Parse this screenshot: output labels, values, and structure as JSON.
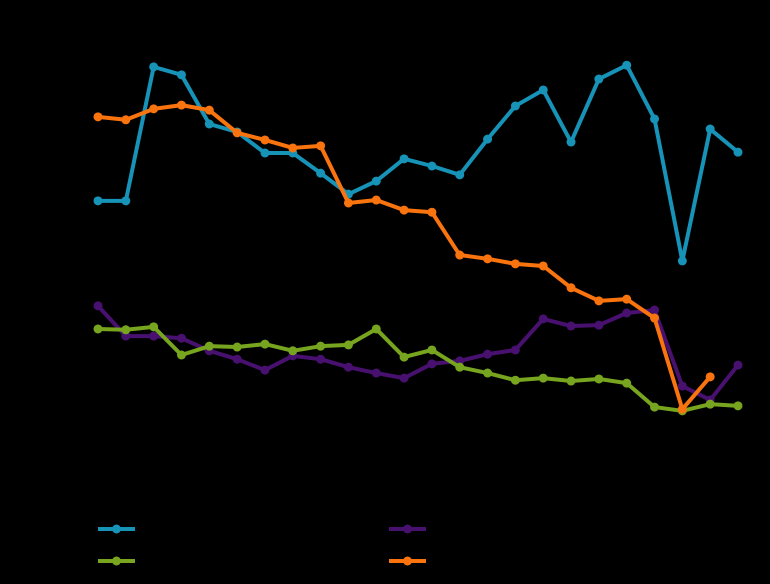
{
  "chart_data": {
    "type": "line",
    "categories": [
      null,
      null,
      null,
      null,
      null,
      null,
      null,
      null,
      null,
      null,
      null,
      null,
      null,
      null,
      null,
      null,
      null,
      null,
      null,
      null,
      null,
      null,
      null,
      null
    ],
    "ylim": [
      0,
      100
    ],
    "background": "#000000",
    "series": [
      {
        "color": "#1793b8",
        "values": [
          61.7,
          61.7,
          93.6,
          91.7,
          80.0,
          78.1,
          73.1,
          73.1,
          68.3,
          63.3,
          66.4,
          71.7,
          70.0,
          67.9,
          76.4,
          84.3,
          88.1,
          75.7,
          90.7,
          94.0,
          81.2,
          47.4,
          78.8,
          73.3
        ]
      },
      {
        "color": "#48106f",
        "values": [
          36.7,
          29.5,
          29.5,
          29.0,
          26.0,
          24.0,
          21.4,
          24.8,
          24.0,
          22.1,
          20.7,
          19.5,
          22.9,
          23.6,
          25.2,
          26.2,
          33.6,
          31.9,
          32.1,
          35.0,
          35.7,
          17.6,
          14.3,
          22.6
        ]
      },
      {
        "color": "#77a51f",
        "values": [
          31.2,
          31.0,
          31.7,
          25.0,
          27.1,
          26.9,
          27.6,
          26.0,
          27.1,
          27.4,
          31.2,
          24.5,
          26.2,
          22.1,
          20.7,
          19.0,
          19.5,
          18.8,
          19.3,
          18.3,
          12.6,
          11.7,
          13.3,
          12.9
        ]
      },
      {
        "color": "#f9740f",
        "values": [
          81.7,
          81.0,
          83.6,
          84.5,
          83.3,
          77.9,
          76.2,
          74.3,
          74.8,
          61.2,
          61.9,
          59.5,
          59.0,
          48.8,
          47.9,
          46.7,
          46.2,
          41.0,
          37.9,
          38.3,
          33.8,
          12.1,
          19.8,
          null
        ]
      }
    ]
  }
}
